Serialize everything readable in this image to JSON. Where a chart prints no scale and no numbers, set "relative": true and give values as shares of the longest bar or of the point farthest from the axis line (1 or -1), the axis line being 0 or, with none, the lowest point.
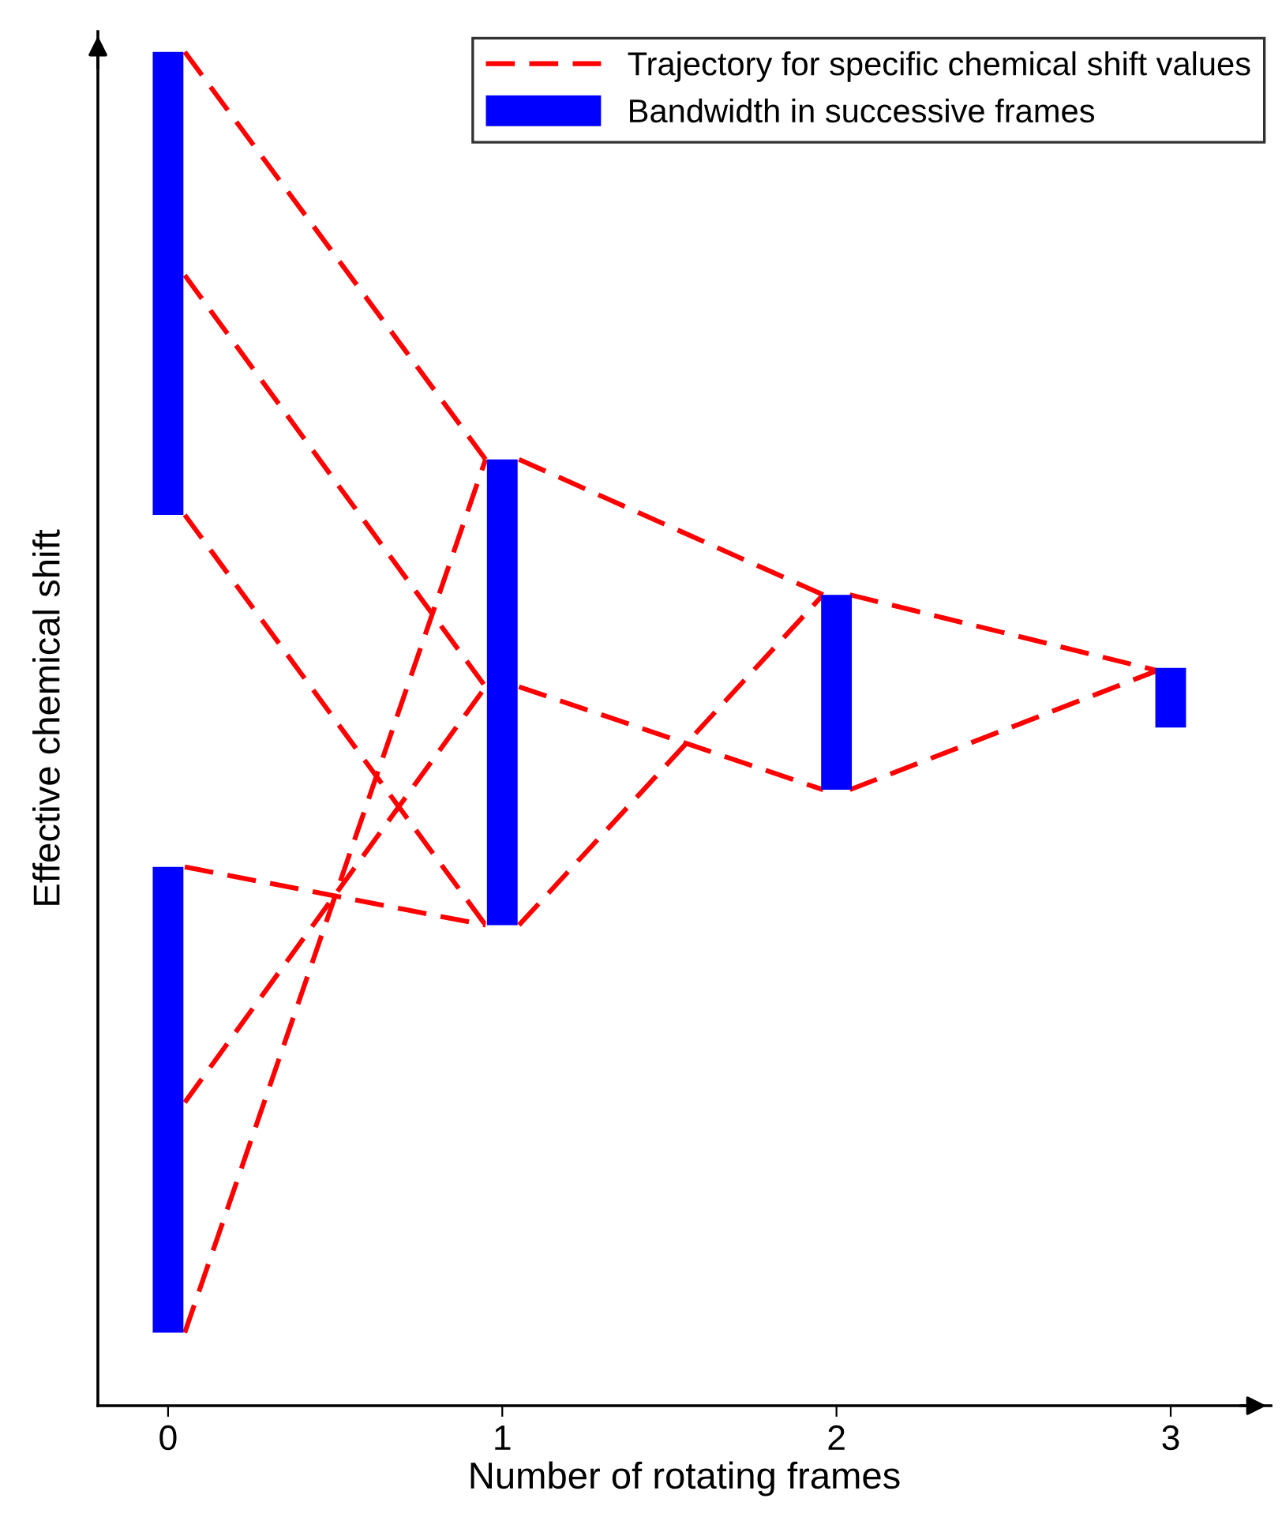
{
  "chart_data": {
    "type": "line",
    "relative": true,
    "xlabel": "Number of rotating frames",
    "ylabel": "Effective chemical shift",
    "xlim": [
      -0.21,
      3.3
    ],
    "xticks": [
      0,
      1,
      2,
      3
    ],
    "grid": false,
    "legend": "top right",
    "series": [
      {
        "name": "Bandwidth in successive frames",
        "color": "#0000ff",
        "line_style": "solid",
        "x": [
          0,
          0
        ],
        "values": [
          0.658,
          1.0
        ]
      },
      {
        "color": "#0000ff",
        "line_style": "solid",
        "x": [
          0,
          0
        ],
        "values": [
          0.054,
          0.398
        ]
      },
      {
        "color": "#0000ff",
        "line_style": "solid",
        "x": [
          1,
          1
        ],
        "values": [
          0.355,
          0.699
        ]
      },
      {
        "color": "#0000ff",
        "line_style": "solid",
        "x": [
          2,
          2
        ],
        "values": [
          0.455,
          0.599
        ]
      },
      {
        "color": "#0000ff",
        "line_style": "solid",
        "x": [
          3,
          3
        ],
        "values": [
          0.501,
          0.545
        ]
      },
      {
        "name": "Trajectory for specific chemical shift values",
        "color": "#ff0000",
        "line_style": "dashed",
        "x": [
          0.05,
          0.95
        ],
        "values": [
          1.0,
          0.699
        ]
      },
      {
        "color": "#ff0000",
        "line_style": "dashed",
        "x": [
          0.05,
          0.95
        ],
        "values": [
          0.835,
          0.531
        ]
      },
      {
        "color": "#ff0000",
        "line_style": "dashed",
        "x": [
          0.05,
          0.95
        ],
        "values": [
          0.658,
          0.355
        ]
      },
      {
        "color": "#ff0000",
        "line_style": "dashed",
        "x": [
          0.05,
          0.95
        ],
        "values": [
          0.398,
          0.355
        ]
      },
      {
        "color": "#ff0000",
        "line_style": "dashed",
        "x": [
          0.05,
          0.95
        ],
        "values": [
          0.224,
          0.531
        ]
      },
      {
        "color": "#ff0000",
        "line_style": "dashed",
        "x": [
          0.05,
          0.95
        ],
        "values": [
          0.054,
          0.699
        ]
      },
      {
        "color": "#ff0000",
        "line_style": "dashed",
        "x": [
          1.05,
          1.96
        ],
        "values": [
          0.699,
          0.599
        ]
      },
      {
        "color": "#ff0000",
        "line_style": "dashed",
        "x": [
          1.05,
          1.96
        ],
        "values": [
          0.531,
          0.455
        ]
      },
      {
        "color": "#ff0000",
        "line_style": "dashed",
        "x": [
          1.05,
          1.96
        ],
        "values": [
          0.355,
          0.599
        ]
      },
      {
        "color": "#ff0000",
        "line_style": "dashed",
        "x": [
          2.04,
          2.96
        ],
        "values": [
          0.599,
          0.543
        ]
      },
      {
        "color": "#ff0000",
        "line_style": "dashed",
        "x": [
          2.04,
          2.96
        ],
        "values": [
          0.455,
          0.543
        ]
      }
    ]
  }
}
